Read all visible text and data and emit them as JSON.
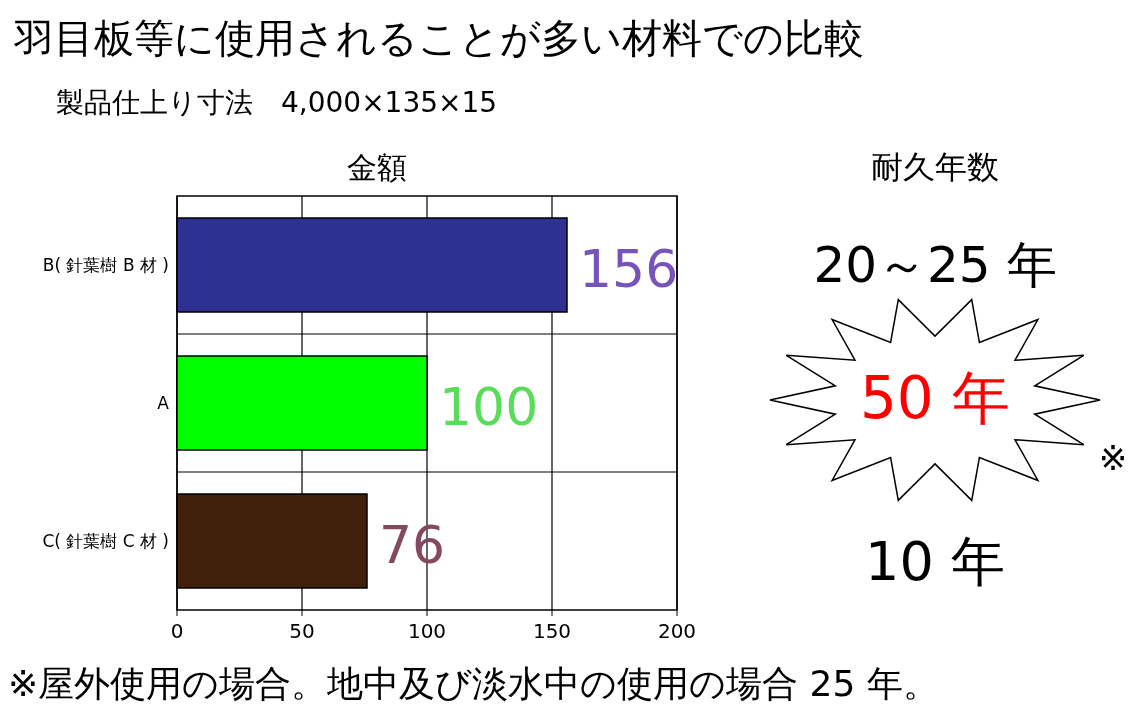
{
  "chart_data": [
    {
      "type": "bar",
      "orientation": "horizontal",
      "title": "羽目板等に使用されることが多い材料での比較",
      "subtitle": "製品仕上り寸法　4,000×135×15",
      "annotations": [
        "金額"
      ],
      "categories": [
        "B( 針葉樹 B 材 )",
        "A",
        "C( 針葉樹 C 材 )"
      ],
      "values": [
        156,
        100,
        76
      ],
      "colors": [
        "#2e3192",
        "#00ff00",
        "#42210b"
      ],
      "value_labels": [
        "156",
        "100",
        "76"
      ],
      "xlim": [
        0,
        200
      ],
      "xticks": [
        0,
        50,
        100,
        150,
        200
      ],
      "grid": true
    },
    {
      "type": "other",
      "title": "耐久年数",
      "annotations": [
        "20～25 年",
        "50 年",
        "10 年",
        "※",
        "※屋外使用の場合。地中及び淡水中の使用の場合 25 年。"
      ]
    }
  ]
}
